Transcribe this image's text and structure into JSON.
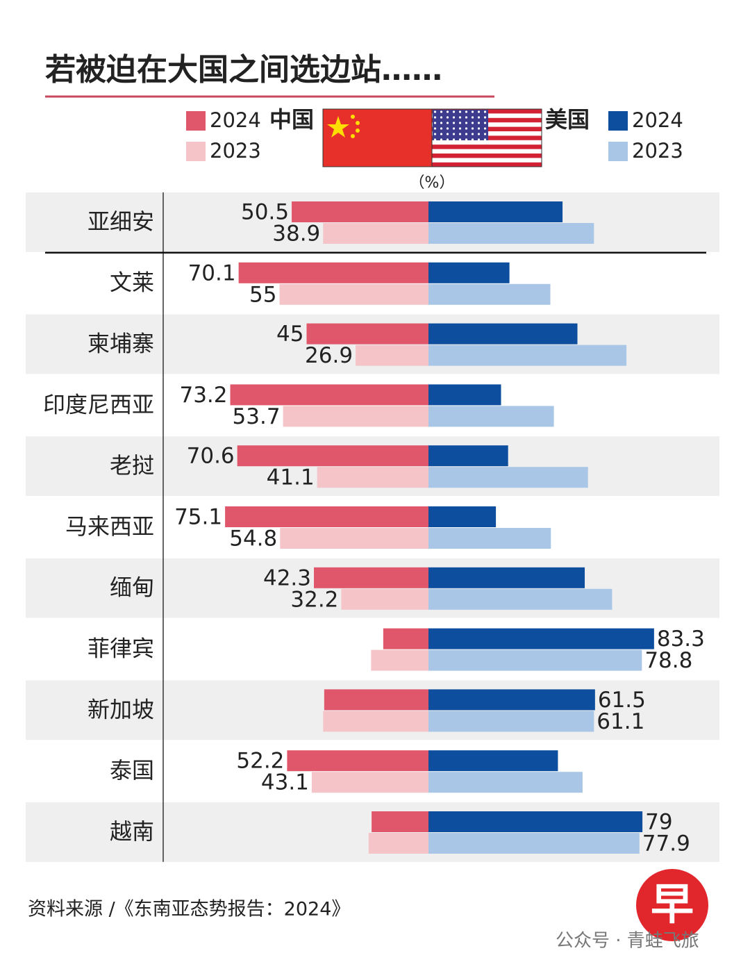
{
  "chart_data": {
    "type": "diverging_bar",
    "title": "若被迫在大国之间选边站……",
    "left_name": "中国",
    "right_name": "美国",
    "unit_label": "（%）",
    "categories": [
      "亚细安",
      "文莱",
      "柬埔寨",
      "印度尼西亚",
      "老挝",
      "马来西亚",
      "缅甸",
      "菲律宾",
      "新加坡",
      "泰国",
      "越南"
    ],
    "xlim": [
      0,
      100
    ],
    "series": [
      {
        "name": "2024",
        "side": "left",
        "color": "#e0566a",
        "values": [
          50.5,
          70.1,
          45,
          73.2,
          70.6,
          75.1,
          42.3,
          16.7,
          38.5,
          52.2,
          21.0
        ],
        "value_labels": [
          "50.5",
          "70.1",
          "45",
          "73.2",
          "70.6",
          "75.1",
          "42.3",
          null,
          null,
          "52.2",
          null
        ]
      },
      {
        "name": "2023",
        "side": "left",
        "color": "#f4c4c8",
        "values": [
          38.9,
          55,
          26.9,
          53.7,
          41.1,
          54.8,
          32.2,
          21.2,
          38.9,
          43.1,
          22.1
        ],
        "value_labels": [
          "38.9",
          "55",
          "26.9",
          "53.7",
          "41.1",
          "54.8",
          "32.2",
          null,
          null,
          "43.1",
          null
        ]
      },
      {
        "name": "2024",
        "side": "right",
        "color": "#0d4f9e",
        "values": [
          49.5,
          29.9,
          55,
          26.8,
          29.4,
          24.9,
          57.7,
          83.3,
          61.5,
          47.8,
          79
        ],
        "value_labels": [
          null,
          null,
          null,
          null,
          null,
          null,
          null,
          "83.3",
          "61.5",
          null,
          "79"
        ]
      },
      {
        "name": "2023",
        "side": "right",
        "color": "#a9c6e6",
        "values": [
          61.1,
          45,
          73.1,
          46.3,
          58.9,
          45.2,
          67.8,
          78.8,
          61.1,
          56.9,
          77.9
        ],
        "value_labels": [
          null,
          null,
          null,
          null,
          null,
          null,
          null,
          "78.8",
          "61.1",
          null,
          "77.9"
        ]
      }
    ],
    "source": "资料来源 /《东南亚态势报告：2024》"
  },
  "logo": "早",
  "watermark": "公众号 · 青蛙飞旅"
}
